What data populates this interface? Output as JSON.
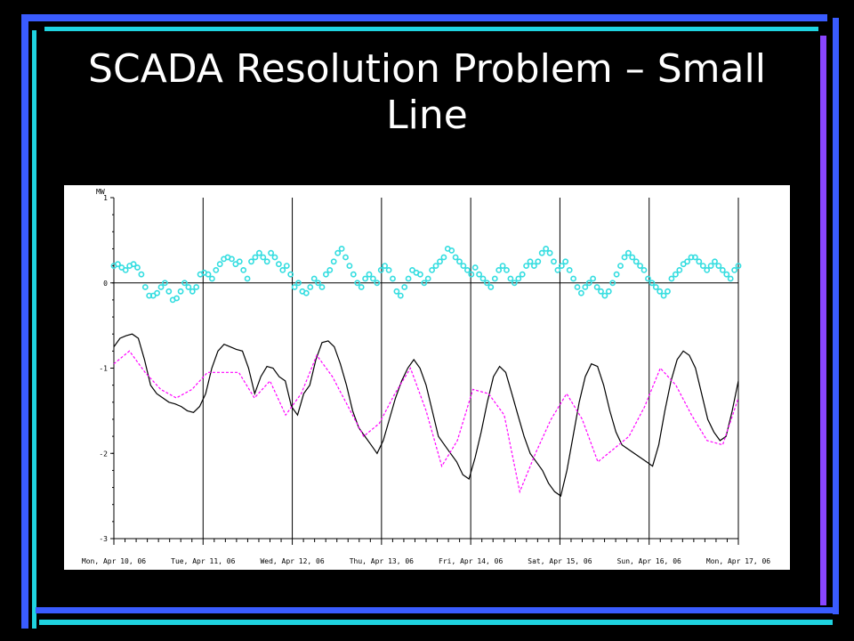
{
  "slide": {
    "title": "SCADA Resolution Problem – Small Line",
    "accent_colors": {
      "blue": "#3a5cff",
      "cyan": "#1fd3e0",
      "violet": "#8a45ff"
    }
  },
  "chart_data": {
    "type": "line",
    "title": "",
    "ylabel": "MW",
    "xlabel": "",
    "ylim": [
      -3,
      1
    ],
    "yticks": [
      1,
      0,
      -1,
      -2,
      -3
    ],
    "x_tick_labels": [
      "Mon, Apr 10, 06",
      "Tue, Apr 11, 06",
      "Wed, Apr 12, 06",
      "Thu, Apr 13, 06",
      "Fri, Apr 14, 06",
      "Sat, Apr 15, 06",
      "Sun, Apr 16, 06",
      "Mon, Apr 17, 06"
    ],
    "grid": "vertical lines at each day",
    "series": [
      {
        "style": "cyan dots",
        "color": "#33dde0",
        "values": [
          0.2,
          0.22,
          0.18,
          0.15,
          0.2,
          0.22,
          0.18,
          0.1,
          -0.05,
          -0.15,
          -0.15,
          -0.12,
          -0.05,
          0.0,
          -0.1,
          -0.2,
          -0.18,
          -0.1,
          0.0,
          -0.05,
          -0.1,
          -0.05,
          0.1,
          0.12,
          0.1,
          0.05,
          0.15,
          0.22,
          0.28,
          0.3,
          0.28,
          0.22,
          0.25,
          0.15,
          0.05,
          0.25,
          0.3,
          0.35,
          0.3,
          0.25,
          0.35,
          0.3,
          0.22,
          0.15,
          0.2,
          0.1,
          -0.05,
          0.0,
          -0.1,
          -0.12,
          -0.05,
          0.05,
          0.0,
          -0.05,
          0.1,
          0.15,
          0.25,
          0.35,
          0.4,
          0.3,
          0.2,
          0.1,
          0.0,
          -0.05,
          0.05,
          0.1,
          0.05,
          0.0,
          0.15,
          0.2,
          0.15,
          0.05,
          -0.1,
          -0.15,
          -0.05,
          0.05,
          0.15,
          0.12,
          0.1,
          0.0,
          0.05,
          0.15,
          0.2,
          0.25,
          0.3,
          0.4,
          0.38,
          0.3,
          0.25,
          0.2,
          0.15,
          0.1,
          0.18,
          0.1,
          0.05,
          0.0,
          -0.05,
          0.05,
          0.15,
          0.2,
          0.15,
          0.05,
          0.0,
          0.05,
          0.1,
          0.2,
          0.25,
          0.2,
          0.25,
          0.35,
          0.4,
          0.35,
          0.25,
          0.15,
          0.2,
          0.25,
          0.15,
          0.05,
          -0.05,
          -0.12,
          -0.05,
          0.0,
          0.05,
          -0.05,
          -0.1,
          -0.15,
          -0.1,
          0.0,
          0.1,
          0.2,
          0.3,
          0.35,
          0.3,
          0.25,
          0.2,
          0.15,
          0.05,
          0.0,
          -0.05,
          -0.1,
          -0.15,
          -0.1,
          0.05,
          0.1,
          0.15,
          0.22,
          0.25,
          0.3,
          0.3,
          0.25,
          0.2,
          0.15,
          0.2,
          0.25,
          0.2,
          0.15,
          0.1,
          0.05,
          0.15,
          0.2
        ]
      },
      {
        "style": "black solid",
        "color": "#000000",
        "values": [
          -0.75,
          -0.65,
          -0.62,
          -0.6,
          -0.65,
          -0.9,
          -1.2,
          -1.3,
          -1.35,
          -1.4,
          -1.42,
          -1.45,
          -1.5,
          -1.52,
          -1.45,
          -1.3,
          -1.0,
          -0.8,
          -0.72,
          -0.75,
          -0.78,
          -0.8,
          -1.0,
          -1.3,
          -1.1,
          -0.98,
          -1.0,
          -1.1,
          -1.15,
          -1.45,
          -1.55,
          -1.3,
          -1.2,
          -0.9,
          -0.7,
          -0.68,
          -0.75,
          -0.95,
          -1.2,
          -1.5,
          -1.7,
          -1.8,
          -1.9,
          -2.0,
          -1.85,
          -1.6,
          -1.35,
          -1.15,
          -1.0,
          -0.9,
          -1.0,
          -1.2,
          -1.5,
          -1.8,
          -1.9,
          -2.0,
          -2.1,
          -2.25,
          -2.3,
          -2.05,
          -1.75,
          -1.4,
          -1.1,
          -0.98,
          -1.05,
          -1.3,
          -1.55,
          -1.8,
          -2.0,
          -2.1,
          -2.2,
          -2.35,
          -2.45,
          -2.5,
          -2.2,
          -1.8,
          -1.4,
          -1.1,
          -0.95,
          -0.98,
          -1.2,
          -1.5,
          -1.75,
          -1.9,
          -1.95,
          -2.0,
          -2.05,
          -2.1,
          -2.15,
          -1.9,
          -1.5,
          -1.15,
          -0.9,
          -0.8,
          -0.85,
          -1.0,
          -1.3,
          -1.6,
          -1.75,
          -1.85,
          -1.8,
          -1.5,
          -1.15
        ]
      },
      {
        "style": "magenta dashed",
        "color": "#ff00ff",
        "values": [
          -0.95,
          -0.8,
          -1.05,
          -1.25,
          -1.35,
          -1.25,
          -1.05,
          -1.05,
          -1.05,
          -1.35,
          -1.15,
          -1.55,
          -1.3,
          -0.85,
          -1.1,
          -1.45,
          -1.8,
          -1.65,
          -1.3,
          -1.0,
          -1.5,
          -2.15,
          -1.85,
          -1.25,
          -1.3,
          -1.55,
          -2.45,
          -2.0,
          -1.6,
          -1.3,
          -1.6,
          -2.1,
          -1.95,
          -1.8,
          -1.45,
          -1.0,
          -1.2,
          -1.55,
          -1.85,
          -1.9,
          -1.35
        ]
      }
    ]
  }
}
